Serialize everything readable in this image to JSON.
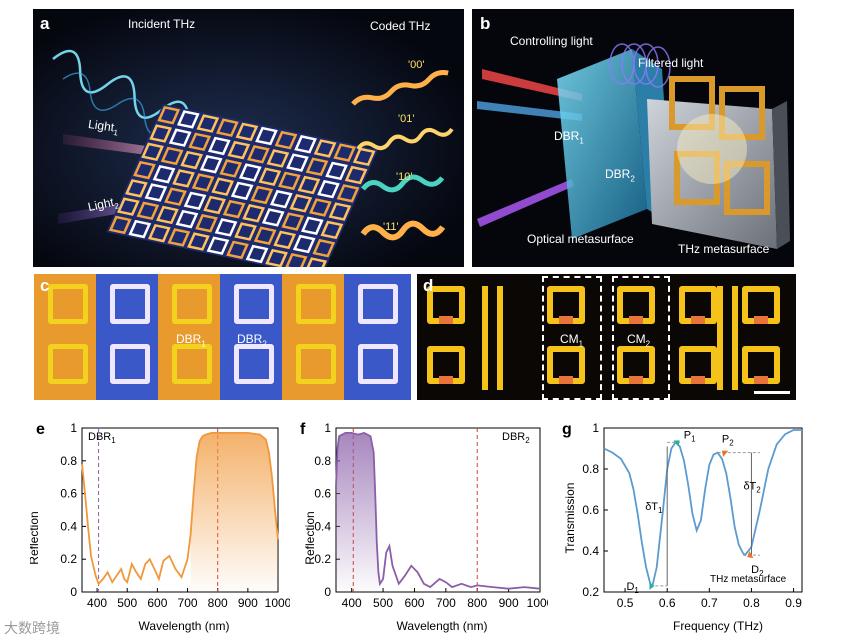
{
  "panel_a": {
    "label": "a",
    "incident": "Incident THz",
    "coded": "Coded THz",
    "codes": [
      "'00'",
      "'01'",
      "'10'",
      "'11'"
    ],
    "light1": "Light",
    "light1_sub": "1",
    "light2": "Light",
    "light2_sub": "2"
  },
  "panel_b": {
    "label": "b",
    "controlling": "Controlling light",
    "filtered": "Filtered light",
    "dbr1": "DBR",
    "dbr1_sub": "1",
    "dbr2": "DBR",
    "dbr2_sub": "2",
    "optical": "Optical metasurface",
    "thz": "THz metasurface"
  },
  "panel_c": {
    "label": "c",
    "dbr1": "DBR",
    "dbr1_sub": "1",
    "dbr2": "DBR",
    "dbr2_sub": "2"
  },
  "panel_d": {
    "label": "d",
    "cm1": "CM",
    "cm1_sub": "1",
    "cm2": "CM",
    "cm2_sub": "2"
  },
  "charts": {
    "e": {
      "label": "e",
      "annotation": "DBR",
      "annotation_sub": "1",
      "xlabel": "Wavelength (nm)",
      "ylabel": "Reflection",
      "x_ticks": [
        "400",
        "500",
        "600",
        "700",
        "800",
        "900",
        "1000"
      ],
      "y_ticks": [
        "0",
        "0.2",
        "0.4",
        "0.6",
        "0.8",
        "1"
      ]
    },
    "f": {
      "label": "f",
      "annotation": "DBR",
      "annotation_sub": "2",
      "xlabel": "Wavelength (nm)",
      "ylabel": "Reflection",
      "x_ticks": [
        "400",
        "500",
        "600",
        "700",
        "800",
        "900",
        "1000"
      ],
      "y_ticks": [
        "0",
        "0.2",
        "0.4",
        "0.6",
        "0.8",
        "1"
      ]
    },
    "g": {
      "label": "g",
      "xlabel": "Frequency (THz)",
      "ylabel": "Transmission",
      "x_ticks": [
        "0.5",
        "0.6",
        "0.7",
        "0.8",
        "0.9"
      ],
      "y_ticks": [
        "0.2",
        "0.4",
        "0.6",
        "0.8",
        "1"
      ],
      "p1": "P",
      "p1_sub": "1",
      "p2": "P",
      "p2_sub": "2",
      "d1": "D",
      "d1_sub": "1",
      "d2": "D",
      "d2_sub": "2",
      "dt1": "δT",
      "dt1_sub": "1",
      "dt2": "δT",
      "dt2_sub": "2",
      "thz_label": "THz metasurface"
    }
  },
  "watermark": "大数跨境",
  "chart_data": [
    {
      "type": "line",
      "panel": "e",
      "title": "",
      "xlabel": "Wavelength (nm)",
      "ylabel": "Reflection",
      "xlim": [
        350,
        1000
      ],
      "ylim": [
        0,
        1
      ],
      "markers": [
        {
          "x": 405,
          "color": "#8a5ea8"
        },
        {
          "x": 800,
          "color": "#d6402f"
        }
      ],
      "series": [
        {
          "name": "DBR1",
          "color": "#f0983a",
          "x": [
            350,
            360,
            370,
            380,
            395,
            405,
            420,
            435,
            450,
            465,
            480,
            490,
            500,
            515,
            530,
            545,
            560,
            575,
            590,
            605,
            620,
            640,
            660,
            680,
            700,
            710,
            720,
            730,
            740,
            750,
            760,
            780,
            800,
            850,
            900,
            940,
            960,
            970,
            980,
            990,
            1000
          ],
          "y": [
            0.78,
            0.6,
            0.4,
            0.22,
            0.1,
            0.05,
            0.08,
            0.12,
            0.06,
            0.1,
            0.14,
            0.08,
            0.06,
            0.17,
            0.12,
            0.08,
            0.17,
            0.2,
            0.14,
            0.08,
            0.19,
            0.22,
            0.14,
            0.09,
            0.2,
            0.35,
            0.6,
            0.82,
            0.92,
            0.95,
            0.96,
            0.97,
            0.97,
            0.97,
            0.97,
            0.96,
            0.93,
            0.85,
            0.7,
            0.5,
            0.32
          ]
        }
      ]
    },
    {
      "type": "line",
      "panel": "f",
      "title": "",
      "xlabel": "Wavelength (nm)",
      "ylabel": "Reflection",
      "xlim": [
        350,
        1000
      ],
      "ylim": [
        0,
        1
      ],
      "markers": [
        {
          "x": 405,
          "color": "#d6402f"
        },
        {
          "x": 800,
          "color": "#d6402f"
        }
      ],
      "series": [
        {
          "name": "DBR2",
          "color": "#8a5ea8",
          "x": [
            350,
            355,
            360,
            370,
            380,
            400,
            420,
            440,
            460,
            470,
            475,
            480,
            485,
            490,
            500,
            510,
            520,
            530,
            550,
            570,
            590,
            610,
            630,
            650,
            680,
            700,
            720,
            750,
            780,
            800,
            850,
            900,
            950,
            1000
          ],
          "y": [
            0.65,
            0.88,
            0.95,
            0.96,
            0.97,
            0.97,
            0.96,
            0.97,
            0.95,
            0.85,
            0.6,
            0.3,
            0.12,
            0.05,
            0.08,
            0.24,
            0.28,
            0.16,
            0.05,
            0.1,
            0.16,
            0.12,
            0.05,
            0.03,
            0.08,
            0.06,
            0.03,
            0.05,
            0.03,
            0.04,
            0.03,
            0.02,
            0.03,
            0.02
          ]
        }
      ]
    },
    {
      "type": "line",
      "panel": "g",
      "title": "",
      "xlabel": "Frequency (THz)",
      "ylabel": "Transmission",
      "xlim": [
        0.45,
        0.92
      ],
      "ylim": [
        0.2,
        1.0
      ],
      "annotations": [
        {
          "text": "P1",
          "x": 0.625,
          "y": 0.93
        },
        {
          "text": "P2",
          "x": 0.725,
          "y": 0.88
        },
        {
          "text": "D1",
          "x": 0.565,
          "y": 0.23
        },
        {
          "text": "D2",
          "x": 0.785,
          "y": 0.38
        }
      ],
      "series": [
        {
          "name": "THz metasurface",
          "color": "#5b9bd0",
          "x": [
            0.45,
            0.47,
            0.49,
            0.51,
            0.52,
            0.53,
            0.54,
            0.55,
            0.56,
            0.565,
            0.575,
            0.59,
            0.6,
            0.61,
            0.62,
            0.63,
            0.64,
            0.65,
            0.66,
            0.67,
            0.68,
            0.69,
            0.7,
            0.71,
            0.72,
            0.73,
            0.74,
            0.75,
            0.76,
            0.77,
            0.78,
            0.785,
            0.8,
            0.82,
            0.84,
            0.86,
            0.88,
            0.9,
            0.92
          ],
          "y": [
            0.9,
            0.88,
            0.85,
            0.78,
            0.7,
            0.58,
            0.44,
            0.32,
            0.24,
            0.23,
            0.32,
            0.6,
            0.8,
            0.9,
            0.93,
            0.91,
            0.84,
            0.72,
            0.58,
            0.5,
            0.55,
            0.7,
            0.82,
            0.87,
            0.88,
            0.85,
            0.78,
            0.66,
            0.52,
            0.43,
            0.39,
            0.38,
            0.42,
            0.6,
            0.8,
            0.92,
            0.97,
            0.99,
            0.99
          ]
        }
      ]
    }
  ]
}
